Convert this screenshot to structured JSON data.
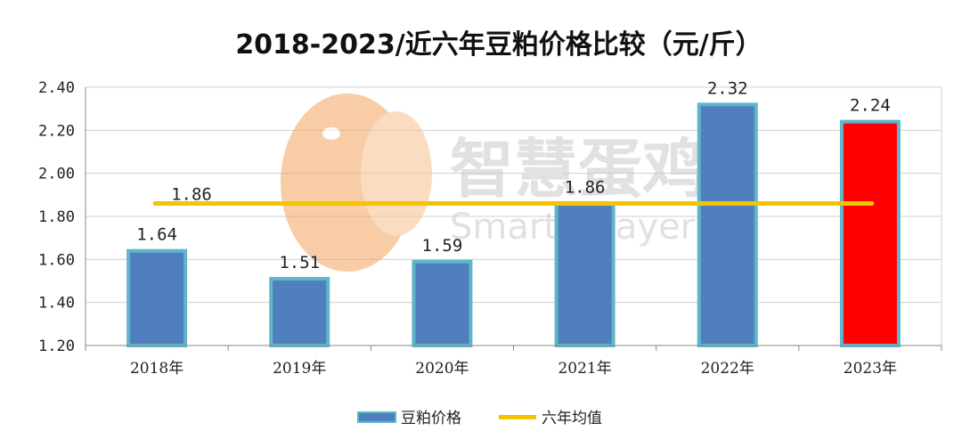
{
  "chart_data": {
    "type": "bar",
    "title": "2018-2023/近六年豆粕价格比较（元/斤）",
    "categories": [
      "2018年",
      "2019年",
      "2020年",
      "2021年",
      "2022年",
      "2023年"
    ],
    "series": [
      {
        "name": "豆粕价格",
        "values": [
          1.64,
          1.51,
          1.59,
          1.86,
          2.32,
          2.24
        ],
        "labels": [
          "1.64",
          "1.51",
          "1.59",
          "1.86",
          "2.32",
          "2.24"
        ]
      }
    ],
    "average": {
      "name": "六年均值",
      "value": 1.86,
      "label": "1.86"
    },
    "ylim": [
      1.2,
      2.4
    ],
    "yticks": [
      "1.20",
      "1.40",
      "1.60",
      "1.80",
      "2.00",
      "2.20",
      "2.40"
    ],
    "grid": true,
    "legend_position": "bottom",
    "colors": {
      "bar": "#4f7fbe",
      "bar_border": "#5fb6c9",
      "highlight_bar": "#ff0000",
      "average_line": "#f5c400",
      "grid": "#d0d0d0",
      "axis": "#888888"
    }
  },
  "watermark": {
    "text_cn": "智慧蛋鸡",
    "text_en": "Smarter layer"
  }
}
